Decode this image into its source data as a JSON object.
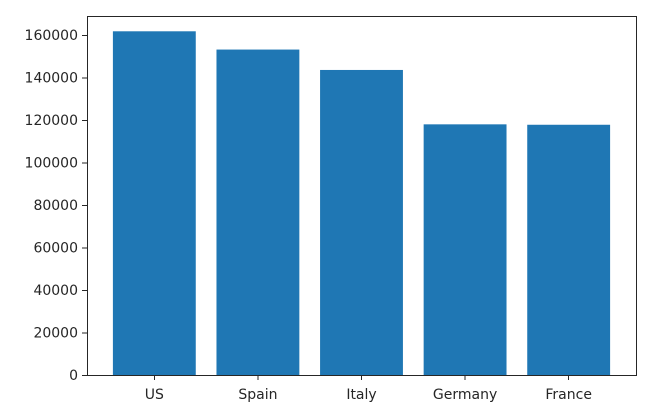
{
  "chart_data": {
    "type": "bar",
    "title": "",
    "xlabel": "",
    "ylabel": "",
    "categories": [
      "US",
      "Spain",
      "Italy",
      "Germany",
      "France"
    ],
    "values": [
      161800,
      153200,
      143600,
      118000,
      117800
    ],
    "ylim": [
      0,
      169000
    ],
    "yticks": [
      0,
      20000,
      40000,
      60000,
      80000,
      100000,
      120000,
      140000,
      160000
    ],
    "ytick_labels": [
      "0",
      "20000",
      "40000",
      "60000",
      "80000",
      "100000",
      "120000",
      "140000",
      "160000"
    ],
    "grid": false,
    "legend": "none",
    "bar_color": "#1f77b4"
  }
}
